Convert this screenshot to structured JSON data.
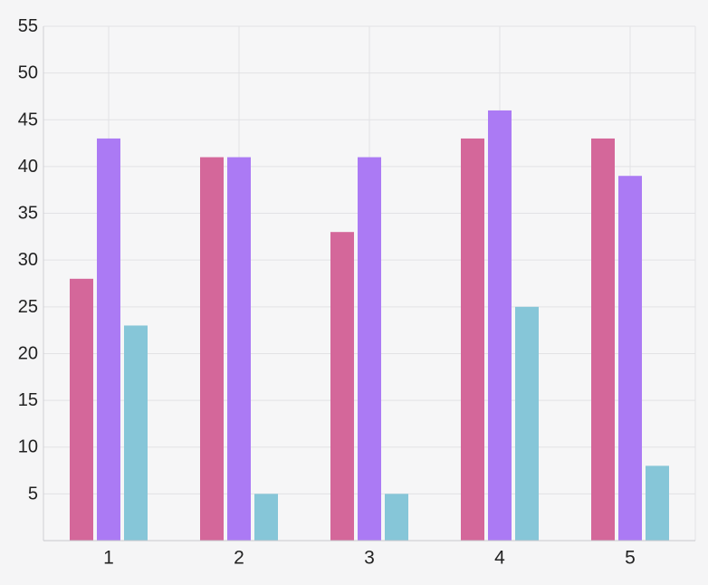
{
  "chart_data": {
    "type": "bar",
    "title": "",
    "xlabel": "",
    "ylabel": "",
    "categories": [
      "1",
      "2",
      "3",
      "4",
      "5"
    ],
    "series": [
      {
        "color": "#d4679a",
        "values": [
          28,
          41,
          33,
          43,
          43
        ]
      },
      {
        "color": "#ab7af4",
        "values": [
          43,
          41,
          41,
          46,
          39
        ]
      },
      {
        "color": "#86c6d8",
        "values": [
          23,
          5,
          5,
          25,
          8
        ]
      }
    ],
    "ylim": [
      0,
      55
    ],
    "yticks": [
      "5",
      "10",
      "15",
      "20",
      "25",
      "30",
      "35",
      "40",
      "45",
      "50",
      "55"
    ],
    "grid": true,
    "legend": "none"
  }
}
